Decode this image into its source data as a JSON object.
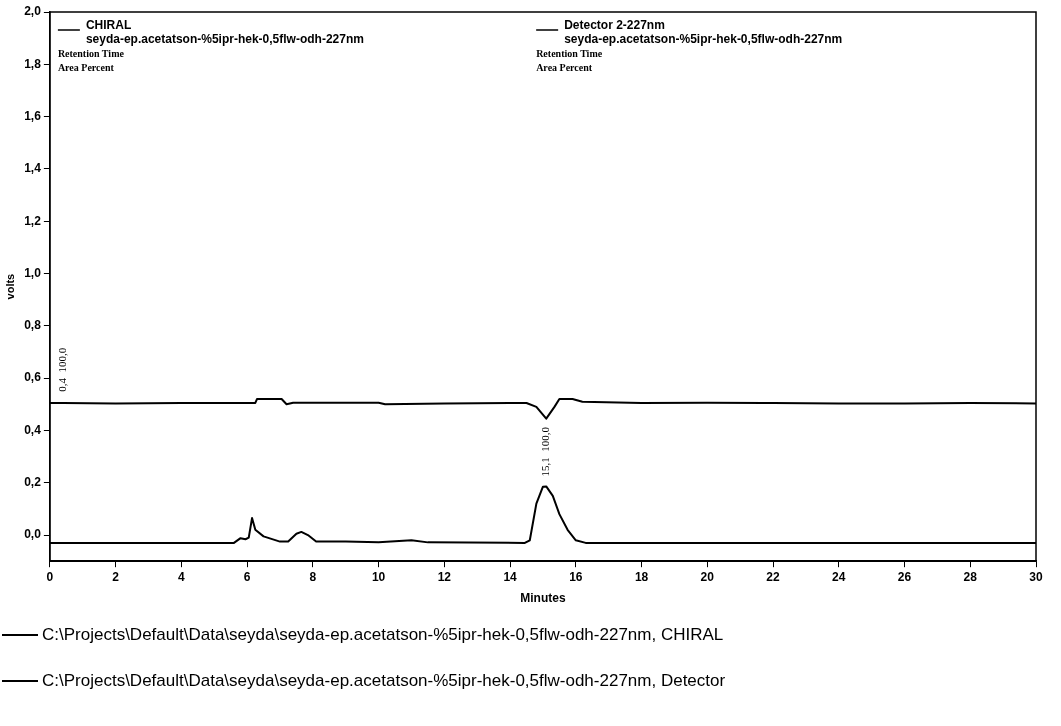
{
  "chart_data": {
    "type": "line",
    "xlabel": "Minutes",
    "ylabel": "volts",
    "xlim": [
      0,
      30
    ],
    "xticks": [
      0,
      2,
      4,
      6,
      8,
      10,
      12,
      14,
      16,
      18,
      20,
      22,
      24,
      26,
      28,
      30
    ],
    "ylim": [
      -0.1,
      2.0
    ],
    "yticks": [
      {
        "value": 0,
        "label": "0,0"
      },
      {
        "value": 0.2,
        "label": "0,2"
      },
      {
        "value": 0.4,
        "label": "0,4"
      },
      {
        "value": 0.6,
        "label": "0,6"
      },
      {
        "value": 0.8,
        "label": "0,8"
      },
      {
        "value": 1.0,
        "label": "1,0"
      },
      {
        "value": 1.2,
        "label": "1,2"
      },
      {
        "value": 1.4,
        "label": "1,4"
      },
      {
        "value": 1.6,
        "label": "1,6"
      },
      {
        "value": 1.8,
        "label": "1,8"
      },
      {
        "value": 2.0,
        "label": "2,0"
      }
    ],
    "grid": false,
    "legend": "bottom",
    "marker": "none",
    "line_style": "solid",
    "series": [
      {
        "name": "C:\\Projects\\Default\\Data\\seyda\\seyda-ep.acetatson-%5ipr-hek-0,5flw-odh-227nm, CHIRAL",
        "color": "#000000",
        "x": [
          0,
          0.4,
          2,
          4,
          6,
          6.25,
          6.3,
          7.05,
          7.2,
          7.4,
          10,
          10.2,
          12,
          14.5,
          14.8,
          15.1,
          15.35,
          15.5,
          15.9,
          16.2,
          18,
          20,
          22,
          24,
          26,
          28,
          30
        ],
        "values": [
          0.505,
          0.505,
          0.503,
          0.505,
          0.505,
          0.505,
          0.52,
          0.52,
          0.5,
          0.506,
          0.506,
          0.5,
          0.503,
          0.505,
          0.49,
          0.445,
          0.49,
          0.52,
          0.52,
          0.51,
          0.505,
          0.506,
          0.505,
          0.503,
          0.503,
          0.505,
          0.503
        ]
      },
      {
        "name": "C:\\Projects\\Default\\Data\\seyda\\seyda-ep.acetatson-%5ipr-hek-0,5flw-odh-227nm, Detector",
        "color": "#000000",
        "x": [
          0,
          5.6,
          5.8,
          5.95,
          6.05,
          6.15,
          6.25,
          6.5,
          7.0,
          7.25,
          7.5,
          7.65,
          7.85,
          8.1,
          9,
          10,
          11,
          11.5,
          14.45,
          14.6,
          14.8,
          15.0,
          15.1,
          15.3,
          15.5,
          15.75,
          16.0,
          16.3,
          20,
          30
        ],
        "values": [
          -0.03,
          -0.03,
          -0.012,
          -0.016,
          -0.01,
          0.065,
          0.02,
          -0.005,
          -0.025,
          -0.025,
          0.005,
          0.012,
          0.0,
          -0.025,
          -0.025,
          -0.028,
          -0.02,
          -0.028,
          -0.03,
          -0.02,
          0.12,
          0.185,
          0.186,
          0.15,
          0.08,
          0.02,
          -0.02,
          -0.03,
          -0.03,
          -0.03
        ]
      }
    ],
    "annotations": [
      "CHIRAL",
      "seyda-ep.acetatson-%5ipr-hek-0,5flw-odh-227nm",
      "Retention Time",
      "Area Percent",
      "Detector 2-227nm",
      "seyda-ep.acetatson-%5ipr-hek-0,5flw-odh-227nm",
      "Retention Time",
      "Area Percent",
      {
        "text": "0,4  100,0",
        "x": 0.4,
        "y": 0.51
      },
      {
        "text": "15,1  100,0",
        "x": 15.1,
        "y": 0.186
      }
    ]
  }
}
